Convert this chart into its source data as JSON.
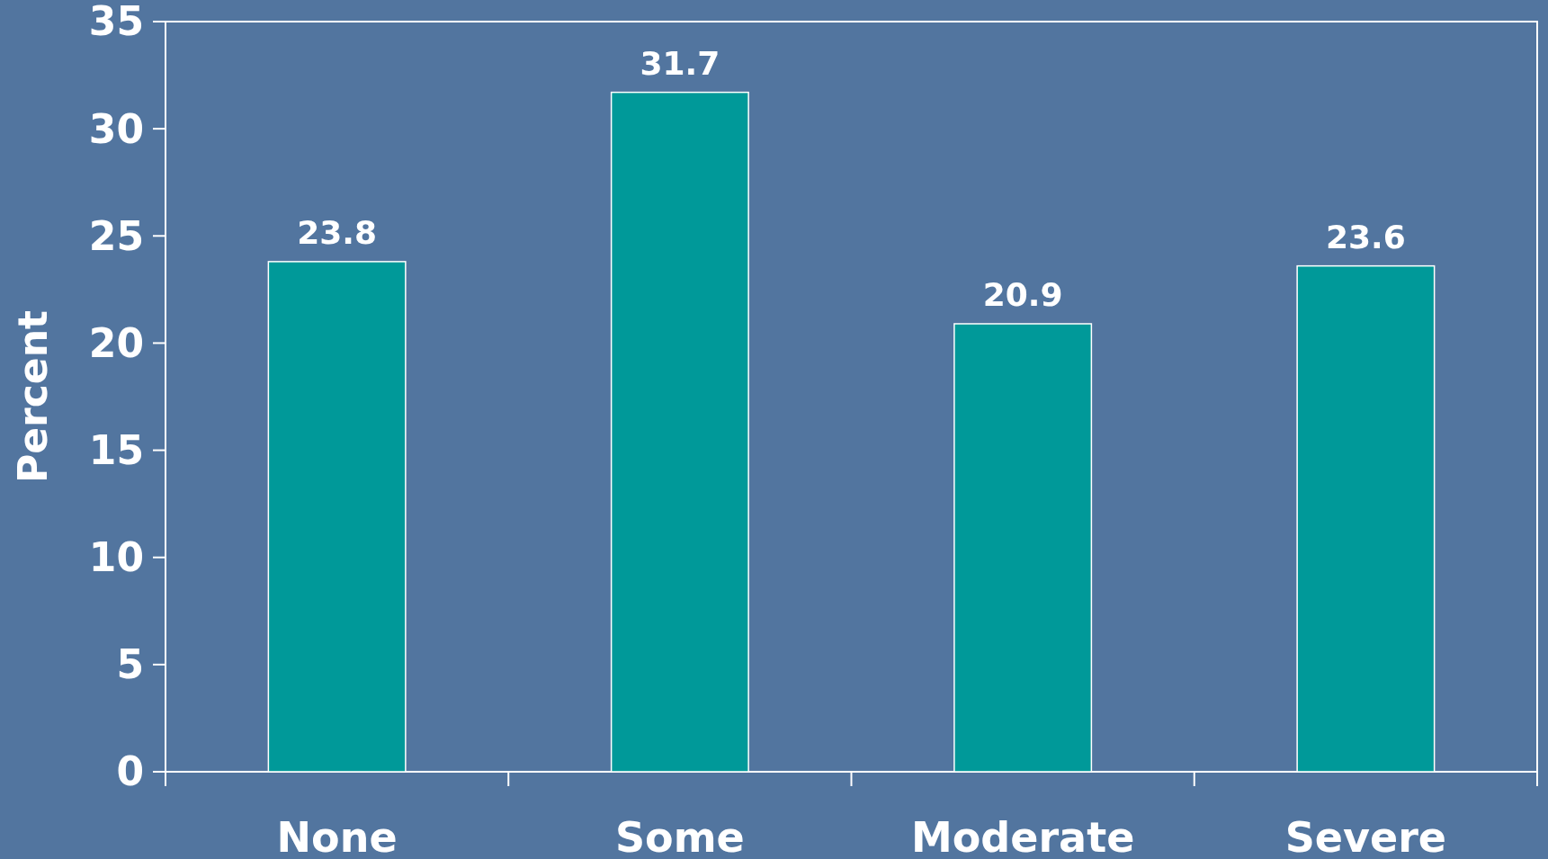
{
  "chart_data": {
    "type": "bar",
    "ylabel": "Percent",
    "categories": [
      "None",
      "Some",
      "Moderate",
      "Severe"
    ],
    "values": [
      23.8,
      31.7,
      20.9,
      23.6
    ],
    "color": "#009999",
    "ylim": [
      0,
      35
    ],
    "yticks": [
      0,
      5,
      10,
      15,
      20,
      25,
      30,
      35
    ],
    "data_labels": true
  }
}
